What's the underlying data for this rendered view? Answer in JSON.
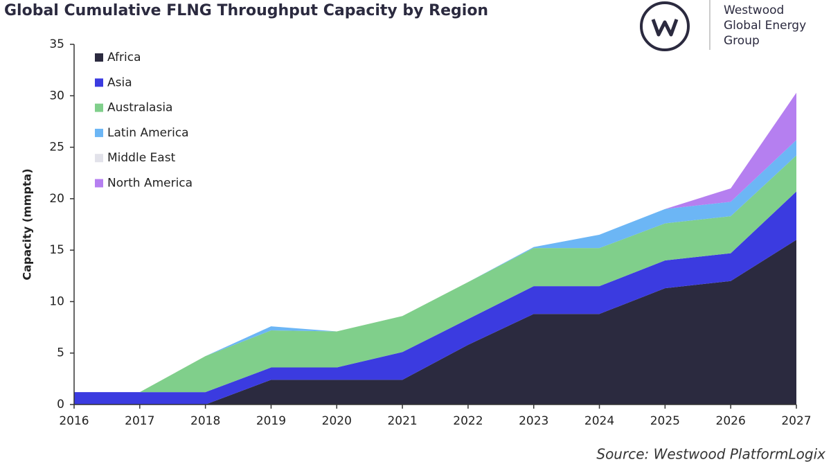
{
  "chart_data": {
    "type": "stacked_area",
    "title": "Global Cumulative FLNG Throughput Capacity by Region",
    "y_label": "Capacity (mmpta)",
    "source": "Source: Westwood PlatformLogix",
    "logo": [
      "Westwood",
      "Global Energy",
      "Group"
    ],
    "x": [
      2016,
      2017,
      2018,
      2019,
      2020,
      2021,
      2022,
      2023,
      2024,
      2025,
      2026,
      2027
    ],
    "xlim": [
      2016,
      2027
    ],
    "xticks": [
      2016,
      2017,
      2018,
      2019,
      2020,
      2021,
      2022,
      2023,
      2024,
      2025,
      2026,
      2027
    ],
    "ylim": [
      0,
      35
    ],
    "yticks": [
      0,
      5,
      10,
      15,
      20,
      25,
      30,
      35
    ],
    "legend": "upper left",
    "series": [
      {
        "name": "Africa",
        "color": "#2b2a3f",
        "values": [
          0,
          0,
          0,
          2.4,
          2.4,
          2.4,
          5.8,
          8.8,
          8.8,
          11.3,
          12,
          16
        ]
      },
      {
        "name": "Asia",
        "color": "#3b3be0",
        "values": [
          1.2,
          1.2,
          1.2,
          1.2,
          1.2,
          2.7,
          2.5,
          2.7,
          2.7,
          2.7,
          2.7,
          4.7
        ]
      },
      {
        "name": "Australasia",
        "color": "#80cf8b",
        "values": [
          0,
          0,
          3.5,
          3.6,
          3.5,
          3.5,
          3.6,
          3.7,
          3.7,
          3.6,
          3.6,
          3.5
        ]
      },
      {
        "name": "Latin America",
        "color": "#6cb6f5",
        "values": [
          0,
          0,
          0,
          0.4,
          0,
          0,
          0,
          0.1,
          1.3,
          1.4,
          1.4,
          1.5
        ]
      },
      {
        "name": "Middle East",
        "color": "#e2e2ea",
        "values": [
          0,
          0,
          0,
          0,
          0,
          0,
          0,
          0,
          0,
          0,
          0,
          0
        ]
      },
      {
        "name": "North America",
        "color": "#b57ff0",
        "values": [
          0,
          0,
          0,
          0,
          0,
          0,
          0,
          0,
          0,
          0,
          1.3,
          4.6
        ]
      }
    ]
  }
}
